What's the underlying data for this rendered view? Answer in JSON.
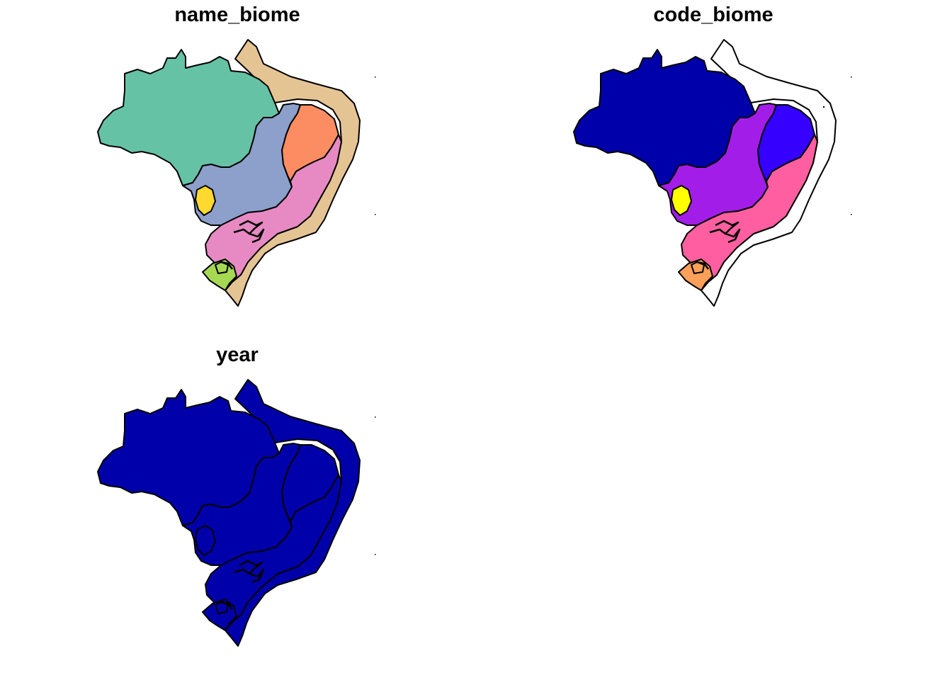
{
  "panels": [
    {
      "title": "name_biome",
      "colors": {
        "amazon": "#66c2a5",
        "cerrado": "#8da0cb",
        "caatinga": "#fc8d62",
        "mata_atlantica": "#e78ac3",
        "pantanal": "#ffd92f",
        "pampa": "#a6d854",
        "coastal": "#e5c494"
      }
    },
    {
      "title": "code_biome",
      "colors": {
        "amazon": "#0000aa",
        "cerrado": "#a31de8",
        "caatinga": "#3600ff",
        "mata_atlantica": "#ff5fa0",
        "pantanal": "#ffff00",
        "pampa": "#ffa05a",
        "coastal": "#ffffff"
      }
    },
    {
      "title": "year",
      "colors": {
        "amazon": "#0000aa",
        "cerrado": "#0000aa",
        "caatinga": "#0000aa",
        "mata_atlantica": "#0000aa",
        "pantanal": "#0000aa",
        "pampa": "#0000aa",
        "coastal": "#0000aa"
      }
    }
  ]
}
